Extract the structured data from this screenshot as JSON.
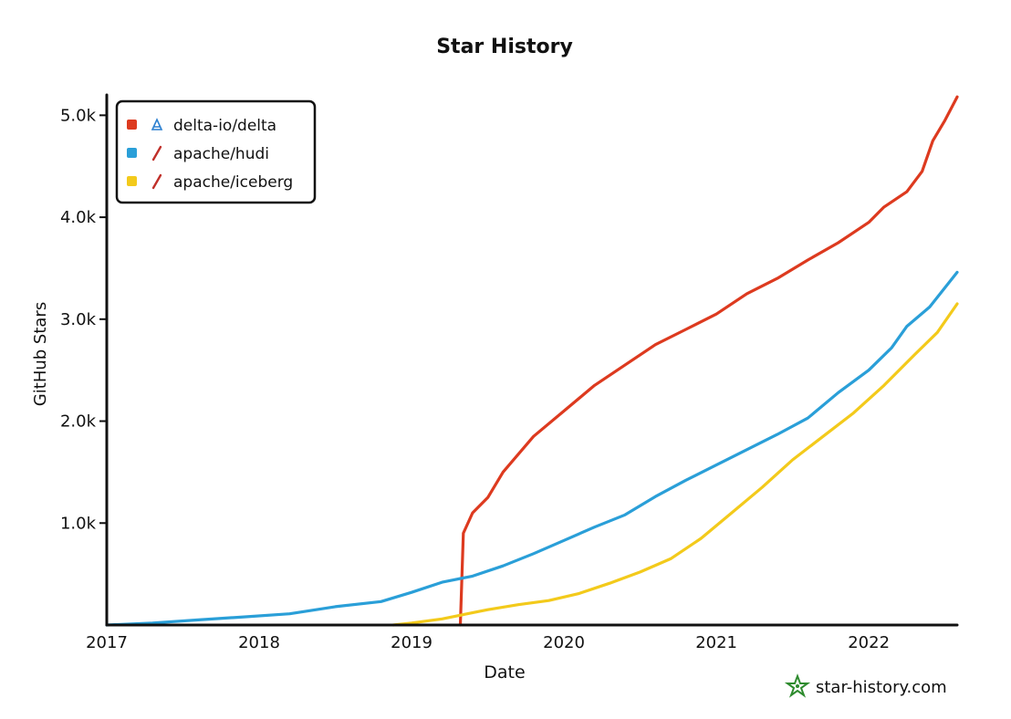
{
  "chart_data": {
    "type": "line",
    "title": "Star History",
    "xlabel": "Date",
    "ylabel": "GitHub Stars",
    "xlim": [
      2017.0,
      2022.58
    ],
    "ylim": [
      0,
      5200
    ],
    "x_ticks": [
      {
        "value": 2017,
        "label": "2017"
      },
      {
        "value": 2018,
        "label": "2018"
      },
      {
        "value": 2019,
        "label": "2019"
      },
      {
        "value": 2020,
        "label": "2020"
      },
      {
        "value": 2021,
        "label": "2021"
      },
      {
        "value": 2022,
        "label": "2022"
      }
    ],
    "y_ticks": [
      {
        "value": 1000,
        "label": "1.0k"
      },
      {
        "value": 2000,
        "label": "2.0k"
      },
      {
        "value": 3000,
        "label": "3.0k"
      },
      {
        "value": 4000,
        "label": "4.0k"
      },
      {
        "value": 5000,
        "label": "5.0k"
      }
    ],
    "legend_position": "top-left",
    "series": [
      {
        "name": "delta-io/delta",
        "color": "#dd3a1f",
        "icon": "delta-logo-icon",
        "points": [
          [
            2019.32,
            0
          ],
          [
            2019.34,
            900
          ],
          [
            2019.4,
            1100
          ],
          [
            2019.5,
            1250
          ],
          [
            2019.6,
            1500
          ],
          [
            2019.8,
            1850
          ],
          [
            2020.0,
            2100
          ],
          [
            2020.2,
            2350
          ],
          [
            2020.4,
            2550
          ],
          [
            2020.6,
            2750
          ],
          [
            2020.8,
            2900
          ],
          [
            2021.0,
            3050
          ],
          [
            2021.2,
            3250
          ],
          [
            2021.4,
            3400
          ],
          [
            2021.6,
            3580
          ],
          [
            2021.8,
            3750
          ],
          [
            2022.0,
            3950
          ],
          [
            2022.1,
            4100
          ],
          [
            2022.25,
            4250
          ],
          [
            2022.35,
            4450
          ],
          [
            2022.42,
            4750
          ],
          [
            2022.5,
            4950
          ],
          [
            2022.58,
            5180
          ]
        ]
      },
      {
        "name": "apache/hudi",
        "color": "#2a9fd8",
        "icon": "feather-icon",
        "points": [
          [
            2017.0,
            0
          ],
          [
            2017.3,
            20
          ],
          [
            2017.6,
            50
          ],
          [
            2017.9,
            80
          ],
          [
            2018.2,
            110
          ],
          [
            2018.5,
            180
          ],
          [
            2018.8,
            230
          ],
          [
            2019.0,
            320
          ],
          [
            2019.2,
            420
          ],
          [
            2019.4,
            480
          ],
          [
            2019.6,
            580
          ],
          [
            2019.8,
            700
          ],
          [
            2020.0,
            830
          ],
          [
            2020.2,
            960
          ],
          [
            2020.4,
            1080
          ],
          [
            2020.6,
            1260
          ],
          [
            2020.8,
            1420
          ],
          [
            2021.0,
            1570
          ],
          [
            2021.2,
            1720
          ],
          [
            2021.4,
            1870
          ],
          [
            2021.6,
            2030
          ],
          [
            2021.8,
            2280
          ],
          [
            2022.0,
            2500
          ],
          [
            2022.15,
            2720
          ],
          [
            2022.25,
            2930
          ],
          [
            2022.4,
            3120
          ],
          [
            2022.58,
            3460
          ]
        ]
      },
      {
        "name": "apache/iceberg",
        "color": "#f3ca1b",
        "icon": "feather-icon",
        "points": [
          [
            2018.88,
            0
          ],
          [
            2019.0,
            20
          ],
          [
            2019.2,
            60
          ],
          [
            2019.3,
            90
          ],
          [
            2019.5,
            150
          ],
          [
            2019.7,
            200
          ],
          [
            2019.9,
            240
          ],
          [
            2020.1,
            310
          ],
          [
            2020.3,
            410
          ],
          [
            2020.5,
            520
          ],
          [
            2020.7,
            650
          ],
          [
            2020.9,
            850
          ],
          [
            2021.1,
            1100
          ],
          [
            2021.3,
            1350
          ],
          [
            2021.5,
            1620
          ],
          [
            2021.7,
            1850
          ],
          [
            2021.9,
            2080
          ],
          [
            2022.1,
            2350
          ],
          [
            2022.3,
            2650
          ],
          [
            2022.45,
            2870
          ],
          [
            2022.58,
            3150
          ]
        ]
      }
    ]
  },
  "watermark": {
    "text": "star-history.com",
    "icon": "star-history-logo-icon"
  }
}
